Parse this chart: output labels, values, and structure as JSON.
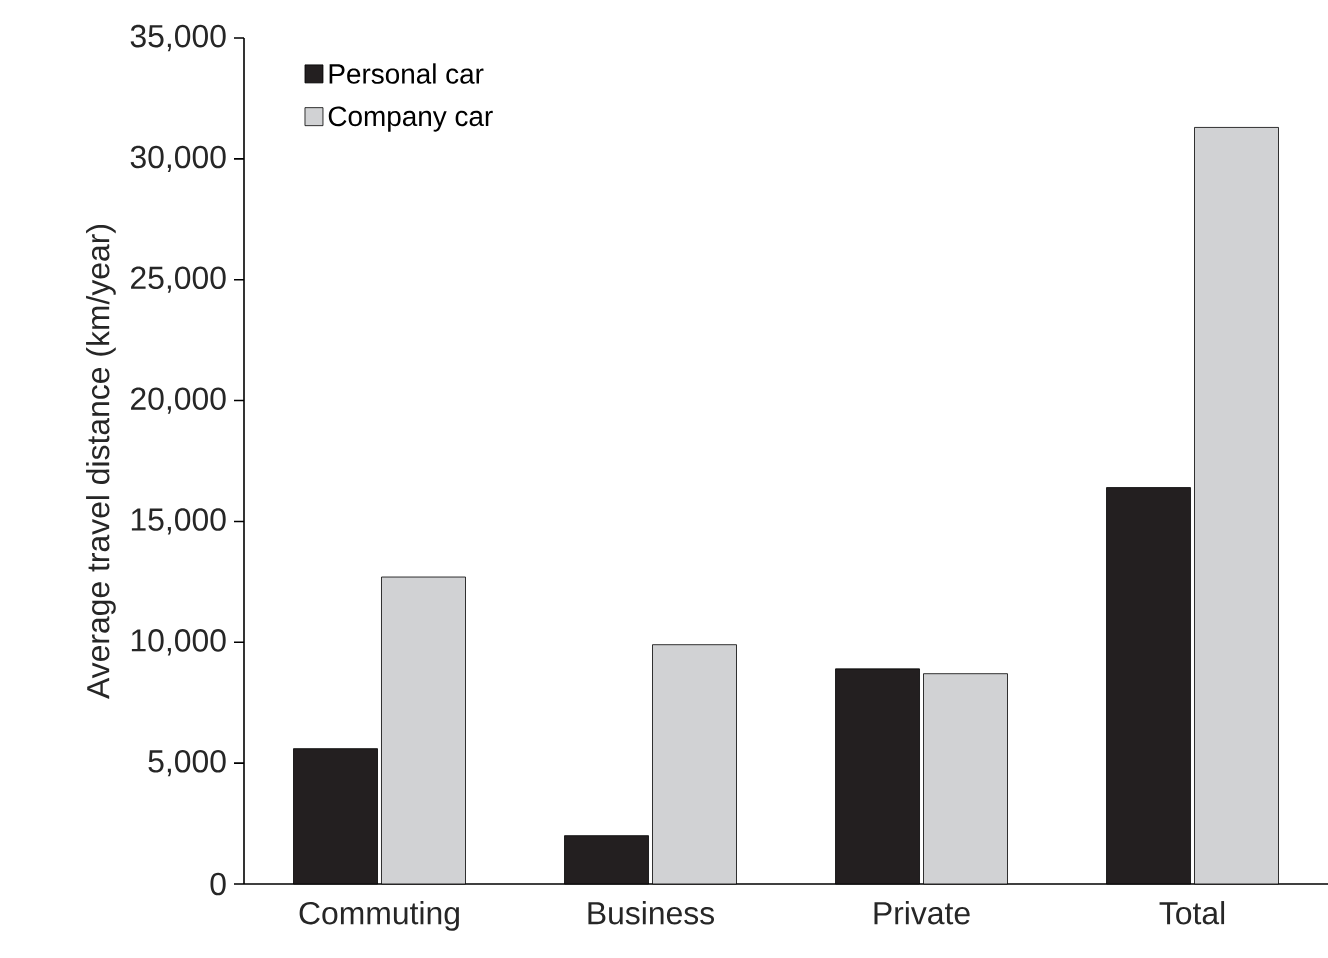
{
  "chart_data": {
    "type": "bar",
    "ylabel": "Average travel distance (km/year)",
    "categories": [
      "Commuting",
      "Business",
      "Private",
      "Total"
    ],
    "series": [
      {
        "name": "Personal car",
        "color": "#231f20",
        "values": [
          5600,
          2000,
          8900,
          16400
        ]
      },
      {
        "name": "Company car",
        "color": "#d1d2d4",
        "values": [
          12700,
          9900,
          8700,
          31300
        ]
      }
    ],
    "ylim": [
      0,
      35000
    ],
    "yticks": [
      {
        "value": 0,
        "label": "0"
      },
      {
        "value": 5000,
        "label": "5,000"
      },
      {
        "value": 10000,
        "label": "10,000"
      },
      {
        "value": 15000,
        "label": "15,000"
      },
      {
        "value": 20000,
        "label": "20,000"
      },
      {
        "value": 25000,
        "label": "25,000"
      },
      {
        "value": 30000,
        "label": "30,000"
      },
      {
        "value": 35000,
        "label": "35,000"
      }
    ],
    "legend": "top left",
    "grid": false
  }
}
